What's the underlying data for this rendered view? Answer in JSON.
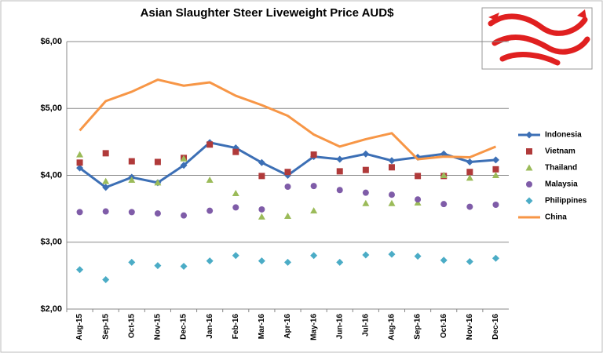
{
  "chart_data": {
    "type": "line",
    "title": "Asian Slaughter Steer Liveweight Price AUD$",
    "categories": [
      "Aug-15",
      "Sep-15",
      "Oct-15",
      "Nov-15",
      "Dec-15",
      "Jan-16",
      "Feb-16",
      "Mar-16",
      "Apr-16",
      "May-16",
      "Jun-16",
      "Jul-16",
      "Aug-16",
      "Sep-16",
      "Oct-16",
      "Nov-16",
      "Dec-16"
    ],
    "ylim": [
      2,
      6
    ],
    "yticks": [
      {
        "value": 2,
        "label": "$2,00"
      },
      {
        "value": 3,
        "label": "$3,00"
      },
      {
        "value": 4,
        "label": "$4,00"
      },
      {
        "value": 5,
        "label": "$5,00"
      },
      {
        "value": 6,
        "label": "$6,00"
      }
    ],
    "grid": true,
    "legend": "right",
    "series": [
      {
        "name": "Indonesia",
        "color": "#3c6fb5",
        "line": true,
        "marker": "diamond",
        "values": [
          4.11,
          3.82,
          3.97,
          3.89,
          4.15,
          4.49,
          4.41,
          4.19,
          4.0,
          4.28,
          4.24,
          4.32,
          4.22,
          4.27,
          4.32,
          4.2,
          4.23
        ]
      },
      {
        "name": "Vietnam",
        "color": "#b03a3a",
        "line": false,
        "marker": "square",
        "values": [
          4.19,
          4.33,
          4.21,
          4.2,
          4.26,
          4.46,
          4.35,
          3.99,
          4.05,
          4.31,
          4.06,
          4.08,
          4.12,
          3.99,
          3.99,
          4.05,
          4.09
        ]
      },
      {
        "name": "Thailand",
        "color": "#9bbb59",
        "line": false,
        "marker": "triangle",
        "values": [
          4.31,
          3.91,
          3.93,
          3.89,
          4.25,
          3.93,
          3.73,
          3.38,
          3.39,
          3.47,
          null,
          3.58,
          3.58,
          3.59,
          4.0,
          3.96,
          4.0
        ]
      },
      {
        "name": "Malaysia",
        "color": "#7f5ca8",
        "line": false,
        "marker": "circle",
        "values": [
          3.45,
          3.46,
          3.45,
          3.43,
          3.4,
          3.47,
          3.52,
          3.49,
          3.83,
          3.84,
          3.78,
          3.74,
          3.71,
          3.64,
          3.57,
          3.53,
          3.56
        ]
      },
      {
        "name": "Philippines",
        "color": "#4bacc6",
        "line": false,
        "marker": "diamond",
        "values": [
          2.59,
          2.44,
          2.7,
          2.65,
          2.64,
          2.72,
          2.8,
          2.72,
          2.7,
          2.8,
          2.7,
          2.81,
          2.82,
          2.79,
          2.73,
          2.71,
          2.76
        ]
      },
      {
        "name": "China",
        "color": "#f79646",
        "line": true,
        "marker": "none",
        "values": [
          4.67,
          5.11,
          5.25,
          5.43,
          5.34,
          5.39,
          5.19,
          5.05,
          4.89,
          4.61,
          4.43,
          4.54,
          4.63,
          4.24,
          4.28,
          4.27,
          4.43
        ]
      }
    ]
  }
}
